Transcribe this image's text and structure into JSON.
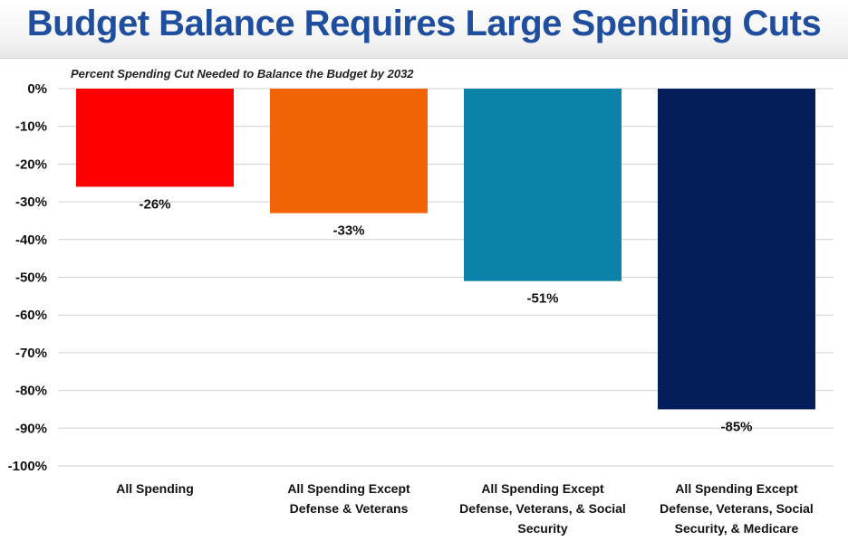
{
  "header": {
    "title": "Budget Balance Requires Large Spending Cuts"
  },
  "chart_data": {
    "type": "bar",
    "subtitle": "Percent Spending Cut Needed to Balance the Budget by 2032",
    "categories": [
      "All Spending",
      "All Spending Except Defense & Veterans",
      "All Spending Except Defense, Veterans, & Social Security",
      "All Spending Except Defense, Veterans, Social Security, & Medicare"
    ],
    "category_lines": [
      [
        "All Spending"
      ],
      [
        "All Spending Except",
        "Defense & Veterans"
      ],
      [
        "All Spending Except",
        "Defense, Veterans, & Social",
        "Security"
      ],
      [
        "All Spending Except",
        "Defense, Veterans, Social",
        "Security, & Medicare"
      ]
    ],
    "values": [
      -26,
      -33,
      -51,
      -85
    ],
    "data_labels": [
      "-26%",
      "-33%",
      "-51%",
      "-85%"
    ],
    "colors": [
      "#ff0000",
      "#f26306",
      "#0b82a8",
      "#041e5c"
    ],
    "ylim": [
      -100,
      0
    ],
    "yticks": [
      0,
      -10,
      -20,
      -30,
      -40,
      -50,
      -60,
      -70,
      -80,
      -90,
      -100
    ],
    "ytick_labels": [
      "0%",
      "-10%",
      "-20%",
      "-30%",
      "-40%",
      "-50%",
      "-60%",
      "-70%",
      "-80%",
      "-90%",
      "-100%"
    ],
    "grid": true,
    "legend": "none",
    "xlabel": "",
    "ylabel": ""
  }
}
